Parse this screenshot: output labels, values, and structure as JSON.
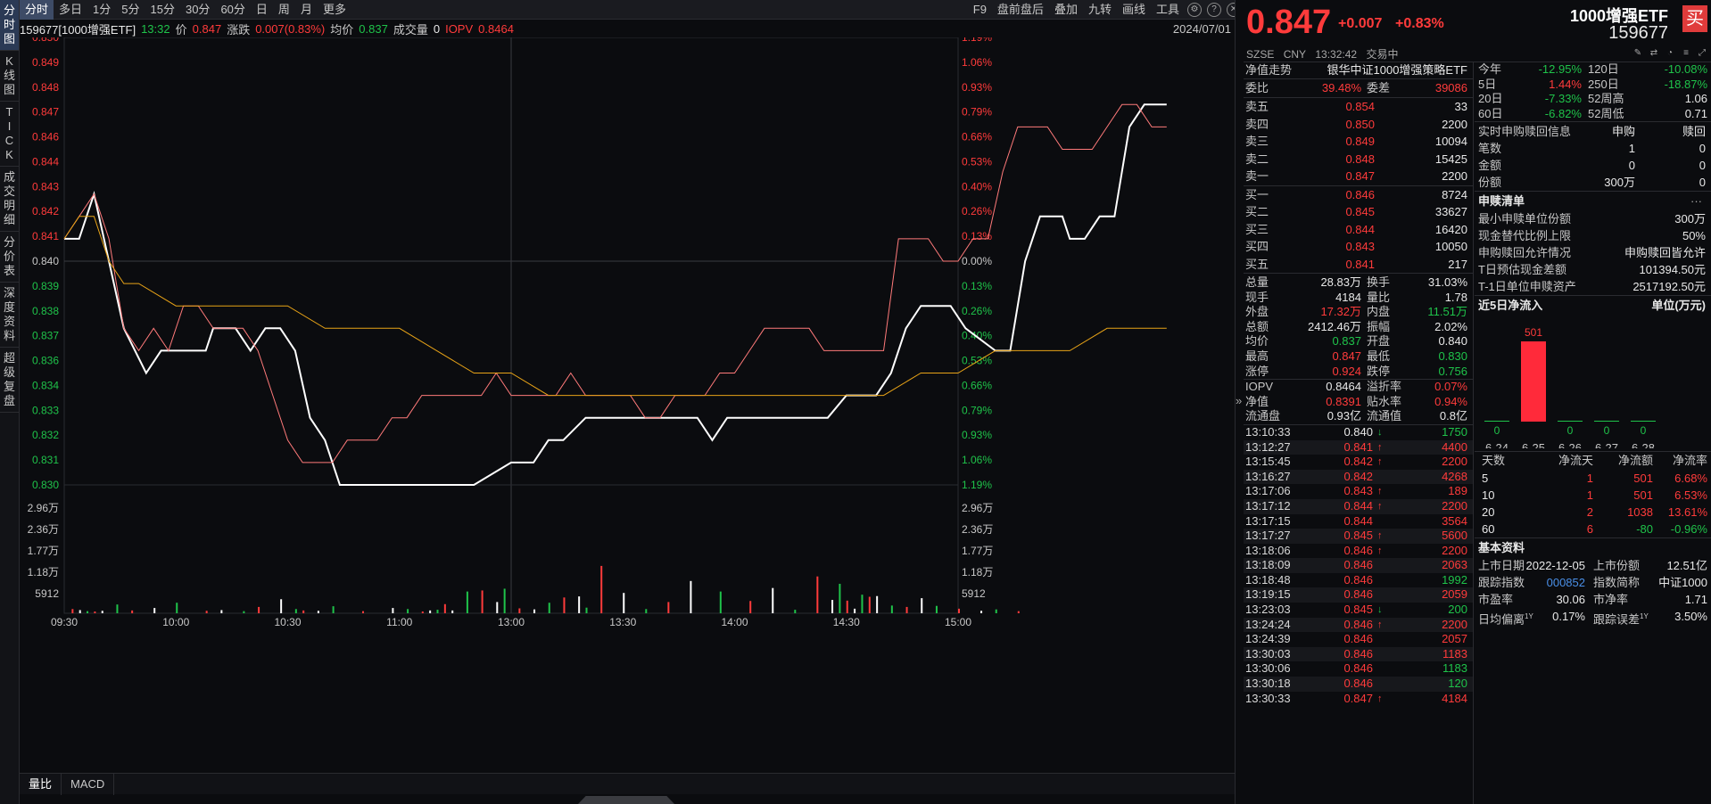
{
  "left_nav": [
    {
      "label": "分时图",
      "chars": [
        "分",
        "时",
        "图"
      ]
    },
    {
      "label": "K线图",
      "chars": [
        "K",
        "线",
        "图"
      ]
    },
    {
      "label": "TICK",
      "chars": [
        "T",
        "I",
        "C",
        "K"
      ]
    },
    {
      "label": "成交明细",
      "chars": [
        "成",
        "交",
        "明",
        "细"
      ]
    },
    {
      "label": "分价表",
      "chars": [
        "分",
        "价",
        "表"
      ]
    },
    {
      "label": "深度资料",
      "chars": [
        "深",
        "度",
        "资",
        "料"
      ]
    },
    {
      "label": "超级复盘",
      "chars": [
        "超",
        "级",
        "复",
        "盘"
      ]
    }
  ],
  "toolbar": {
    "periods": [
      "分时",
      "多日",
      "1分",
      "5分",
      "15分",
      "30分",
      "60分",
      "日",
      "周",
      "月",
      "更多"
    ],
    "tools": [
      "F9",
      "盘前盘后",
      "叠加",
      "九转",
      "画线",
      "工具"
    ]
  },
  "info_line": {
    "code_name": "159677[1000增强ETF]",
    "time": "13:32",
    "price_label": "价",
    "price": "0.847",
    "change_label": "涨跌",
    "change": "0.007(0.83%)",
    "avg_label": "均价",
    "avg": "0.837",
    "vol_label": "成交量",
    "vol": "0",
    "iopv_label": "IOPV",
    "iopv": "0.8464",
    "date": "2024/07/01"
  },
  "chart_data": {
    "type": "line",
    "prev_close": 0.84,
    "ylim": [
      0.83,
      0.85
    ],
    "y_ticks": [
      "0.850",
      "0.849",
      "0.848",
      "0.847",
      "0.846",
      "0.844",
      "0.843",
      "0.842",
      "0.841",
      "0.840",
      "0.839",
      "0.838",
      "0.837",
      "0.836",
      "0.834",
      "0.833",
      "0.832",
      "0.831",
      "0.830"
    ],
    "pct_ticks": [
      "1.19%",
      "1.06%",
      "0.93%",
      "0.79%",
      "0.66%",
      "0.53%",
      "0.40%",
      "0.26%",
      "0.13%",
      "0.00%",
      "0.13%",
      "0.26%",
      "0.40%",
      "0.53%",
      "0.66%",
      "0.79%",
      "0.93%",
      "1.06%",
      "1.19%"
    ],
    "x_ticks": [
      "09:30",
      "10:00",
      "10:30",
      "11:00",
      "13:00",
      "13:30",
      "14:00",
      "14:30",
      "15:00"
    ],
    "vol_ticks": [
      "2.96万",
      "2.36万",
      "1.77万",
      "1.18万",
      "5912"
    ],
    "series": [
      {
        "name": "价格",
        "color": "#ffffff",
        "x": [
          0,
          4,
          8,
          12,
          16,
          22,
          26,
          30,
          34,
          38,
          40,
          46,
          50,
          54,
          58,
          62,
          66,
          70,
          74,
          80,
          90,
          100,
          110,
          120,
          126,
          130,
          134,
          140,
          150,
          160,
          170,
          174,
          178,
          190,
          200,
          205,
          210,
          215,
          218,
          222,
          226,
          230,
          234,
          238,
          242,
          250,
          254,
          258,
          262,
          266,
          268,
          270,
          274,
          278,
          282,
          286,
          290,
          294,
          296
        ],
        "y": [
          0.841,
          0.841,
          0.843,
          0.84,
          0.837,
          0.835,
          0.836,
          0.836,
          0.836,
          0.836,
          0.837,
          0.837,
          0.836,
          0.837,
          0.837,
          0.836,
          0.833,
          0.832,
          0.83,
          0.83,
          0.83,
          0.83,
          0.83,
          0.831,
          0.831,
          0.832,
          0.832,
          0.833,
          0.833,
          0.833,
          0.833,
          0.832,
          0.833,
          0.833,
          0.833,
          0.833,
          0.834,
          0.834,
          0.834,
          0.835,
          0.837,
          0.838,
          0.838,
          0.838,
          0.837,
          0.836,
          0.836,
          0.84,
          0.842,
          0.842,
          0.842,
          0.841,
          0.841,
          0.842,
          0.842,
          0.846,
          0.847,
          0.847,
          0.847
        ]
      },
      {
        "name": "IOPV",
        "color": "#ff7a7a",
        "x": [
          0,
          4,
          8,
          12,
          16,
          20,
          24,
          28,
          32,
          36,
          40,
          44,
          48,
          52,
          56,
          60,
          64,
          68,
          72,
          76,
          80,
          84,
          88,
          92,
          96,
          100,
          104,
          108,
          112,
          116,
          120,
          124,
          128,
          132,
          136,
          140,
          144,
          148,
          152,
          156,
          160,
          164,
          168,
          172,
          176,
          180,
          184,
          188,
          192,
          196,
          200,
          204,
          208,
          212,
          216,
          220,
          224,
          228,
          232,
          236,
          240,
          244,
          248,
          252,
          256,
          260,
          264,
          268,
          272,
          276,
          280,
          284,
          288,
          292,
          296
        ],
        "y": [
          0.841,
          0.842,
          0.843,
          0.841,
          0.837,
          0.836,
          0.837,
          0.836,
          0.838,
          0.838,
          0.837,
          0.837,
          0.837,
          0.836,
          0.834,
          0.832,
          0.831,
          0.831,
          0.831,
          0.832,
          0.832,
          0.832,
          0.833,
          0.833,
          0.834,
          0.834,
          0.834,
          0.834,
          0.834,
          0.835,
          0.834,
          0.834,
          0.834,
          0.834,
          0.835,
          0.834,
          0.834,
          0.834,
          0.834,
          0.833,
          0.833,
          0.834,
          0.834,
          0.834,
          0.835,
          0.835,
          0.836,
          0.837,
          0.837,
          0.837,
          0.837,
          0.836,
          0.836,
          0.836,
          0.836,
          0.836,
          0.841,
          0.841,
          0.841,
          0.84,
          0.84,
          0.841,
          0.841,
          0.844,
          0.846,
          0.846,
          0.846,
          0.845,
          0.845,
          0.845,
          0.846,
          0.847,
          0.847,
          0.846,
          0.846
        ]
      },
      {
        "name": "均价",
        "color": "#e8a317",
        "x": [
          0,
          4,
          8,
          12,
          16,
          20,
          30,
          40,
          50,
          60,
          70,
          80,
          90,
          100,
          110,
          120,
          130,
          140,
          150,
          160,
          170,
          180,
          190,
          200,
          210,
          220,
          230,
          240,
          250,
          260,
          270,
          280,
          290,
          296
        ],
        "y": [
          0.841,
          0.842,
          0.842,
          0.84,
          0.839,
          0.839,
          0.838,
          0.838,
          0.838,
          0.838,
          0.837,
          0.837,
          0.837,
          0.836,
          0.835,
          0.835,
          0.834,
          0.834,
          0.834,
          0.834,
          0.834,
          0.834,
          0.834,
          0.834,
          0.834,
          0.834,
          0.835,
          0.835,
          0.836,
          0.836,
          0.836,
          0.837,
          0.837,
          0.837
        ]
      }
    ],
    "volume": {
      "x": [
        2,
        4,
        6,
        8,
        10,
        14,
        18,
        24,
        30,
        38,
        42,
        48,
        52,
        58,
        62,
        64,
        68,
        72,
        80,
        88,
        92,
        96,
        98,
        100,
        102,
        104,
        108,
        112,
        116,
        118,
        122,
        126,
        130,
        134,
        138,
        140,
        144,
        150,
        156,
        162,
        168,
        176,
        184,
        190,
        196,
        202,
        206,
        208,
        210,
        212,
        214,
        216,
        218,
        222,
        226,
        230,
        234,
        240,
        246,
        250,
        256
      ],
      "v": [
        1200,
        900,
        600,
        500,
        700,
        2500,
        800,
        1500,
        3000,
        700,
        900,
        600,
        1800,
        4000,
        1200,
        800,
        700,
        2000,
        600,
        1500,
        1200,
        500,
        800,
        1000,
        2600,
        800,
        6200,
        6500,
        3200,
        7000,
        1400,
        1100,
        3000,
        4500,
        4800,
        1600,
        13500,
        5800,
        1200,
        3200,
        9200,
        6200,
        3500,
        7200,
        1000,
        10500,
        3800,
        8400,
        3600,
        1300,
        5300,
        4700,
        4900,
        2200,
        1800,
        4300,
        2100,
        1300,
        700,
        1100,
        600
      ],
      "max": 30000
    }
  },
  "bottom_tabs": [
    "量比",
    "MACD"
  ],
  "quote": {
    "price": "0.847",
    "change": "+0.007",
    "change_pct": "+0.83%",
    "name": "1000增强ETF",
    "code": "159677",
    "buy_label": "买",
    "exchange": "SZSE",
    "currency": "CNY",
    "time": "13:32:42",
    "status": "交易中"
  },
  "nav_trend": {
    "label": "净值走势",
    "value": "银华中证1000增强策略ETF"
  },
  "weibi": {
    "label": "委比",
    "value": "39.48%",
    "label2": "委差",
    "value2": "39086"
  },
  "asks": [
    {
      "label": "卖五",
      "price": "0.854",
      "vol": "33"
    },
    {
      "label": "卖四",
      "price": "0.850",
      "vol": "2200"
    },
    {
      "label": "卖三",
      "price": "0.849",
      "vol": "10094"
    },
    {
      "label": "卖二",
      "price": "0.848",
      "vol": "15425"
    },
    {
      "label": "卖一",
      "price": "0.847",
      "vol": "2200"
    }
  ],
  "bids": [
    {
      "label": "买一",
      "price": "0.846",
      "vol": "8724"
    },
    {
      "label": "买二",
      "price": "0.845",
      "vol": "33627"
    },
    {
      "label": "买三",
      "price": "0.844",
      "vol": "16420"
    },
    {
      "label": "买四",
      "price": "0.843",
      "vol": "10050"
    },
    {
      "label": "买五",
      "price": "0.841",
      "vol": "217"
    }
  ],
  "stats": [
    {
      "k1": "总量",
      "v1": "28.83万",
      "c1": "white",
      "k2": "换手",
      "v2": "31.03%",
      "c2": "white"
    },
    {
      "k1": "现手",
      "v1": "4184",
      "c1": "white",
      "k2": "量比",
      "v2": "1.78",
      "c2": "white"
    },
    {
      "k1": "外盘",
      "v1": "17.32万",
      "c1": "red",
      "k2": "内盘",
      "v2": "11.51万",
      "c2": "green"
    },
    {
      "k1": "总额",
      "v1": "2412.46万",
      "c1": "white",
      "k2": "振幅",
      "v2": "2.02%",
      "c2": "white"
    },
    {
      "k1": "均价",
      "v1": "0.837",
      "c1": "green",
      "k2": "开盘",
      "v2": "0.840",
      "c2": "white"
    },
    {
      "k1": "最高",
      "v1": "0.847",
      "c1": "red",
      "k2": "最低",
      "v2": "0.830",
      "c2": "green"
    },
    {
      "k1": "涨停",
      "v1": "0.924",
      "c1": "red",
      "k2": "跌停",
      "v2": "0.756",
      "c2": "green"
    }
  ],
  "stats2": [
    {
      "k1": "IOPV",
      "v1": "0.8464",
      "c1": "white",
      "k2": "溢折率",
      "v2": "0.07%",
      "c2": "red"
    },
    {
      "k1": "净值",
      "v1": "0.8391",
      "c1": "red",
      "k2": "贴水率",
      "v2": "0.94%",
      "c2": "red"
    },
    {
      "k1": "流通盘",
      "v1": "0.93亿",
      "c1": "white",
      "k2": "流通值",
      "v2": "0.8亿",
      "c2": "white"
    }
  ],
  "ticks": [
    {
      "t": "13:10:33",
      "p": "0.840",
      "pc": "white",
      "a": "↓",
      "ac": "green",
      "v": "1750",
      "vc": "green"
    },
    {
      "t": "13:12:27",
      "p": "0.841",
      "pc": "red",
      "a": "↑",
      "ac": "red",
      "v": "4400",
      "vc": "red"
    },
    {
      "t": "13:15:45",
      "p": "0.842",
      "pc": "red",
      "a": "↑",
      "ac": "red",
      "v": "2200",
      "vc": "red"
    },
    {
      "t": "13:16:27",
      "p": "0.842",
      "pc": "red",
      "a": "",
      "ac": "red",
      "v": "4268",
      "vc": "red"
    },
    {
      "t": "13:17:06",
      "p": "0.843",
      "pc": "red",
      "a": "↑",
      "ac": "red",
      "v": "189",
      "vc": "red"
    },
    {
      "t": "13:17:12",
      "p": "0.844",
      "pc": "red",
      "a": "↑",
      "ac": "red",
      "v": "2200",
      "vc": "red"
    },
    {
      "t": "13:17:15",
      "p": "0.844",
      "pc": "red",
      "a": "",
      "ac": "red",
      "v": "3564",
      "vc": "red"
    },
    {
      "t": "13:17:27",
      "p": "0.845",
      "pc": "red",
      "a": "↑",
      "ac": "red",
      "v": "5600",
      "vc": "red"
    },
    {
      "t": "13:18:06",
      "p": "0.846",
      "pc": "red",
      "a": "↑",
      "ac": "red",
      "v": "2200",
      "vc": "red"
    },
    {
      "t": "13:18:09",
      "p": "0.846",
      "pc": "red",
      "a": "",
      "ac": "red",
      "v": "2063",
      "vc": "red"
    },
    {
      "t": "13:18:48",
      "p": "0.846",
      "pc": "red",
      "a": "",
      "ac": "red",
      "v": "1992",
      "vc": "green"
    },
    {
      "t": "13:19:15",
      "p": "0.846",
      "pc": "red",
      "a": "",
      "ac": "red",
      "v": "2059",
      "vc": "red"
    },
    {
      "t": "13:23:03",
      "p": "0.845",
      "pc": "red",
      "a": "↓",
      "ac": "green",
      "v": "200",
      "vc": "green"
    },
    {
      "t": "13:24:24",
      "p": "0.846",
      "pc": "red",
      "a": "↑",
      "ac": "red",
      "v": "2200",
      "vc": "red"
    },
    {
      "t": "13:24:39",
      "p": "0.846",
      "pc": "red",
      "a": "",
      "ac": "red",
      "v": "2057",
      "vc": "red"
    },
    {
      "t": "13:30:03",
      "p": "0.846",
      "pc": "red",
      "a": "",
      "ac": "red",
      "v": "1183",
      "vc": "red"
    },
    {
      "t": "13:30:06",
      "p": "0.846",
      "pc": "red",
      "a": "",
      "ac": "red",
      "v": "1183",
      "vc": "green"
    },
    {
      "t": "13:30:18",
      "p": "0.846",
      "pc": "red",
      "a": "",
      "ac": "red",
      "v": "120",
      "vc": "green"
    },
    {
      "t": "13:30:33",
      "p": "0.847",
      "pc": "red",
      "a": "↑",
      "ac": "red",
      "v": "4184",
      "vc": "red"
    }
  ],
  "performance": [
    {
      "l1": "今年",
      "v1": "-12.95%",
      "c1": "green",
      "l2": "120日",
      "v2": "-10.08%",
      "c2": "green"
    },
    {
      "l1": "5日",
      "v1": "1.44%",
      "c1": "red",
      "l2": "250日",
      "v2": "-18.87%",
      "c2": "green"
    },
    {
      "l1": "20日",
      "v1": "-7.33%",
      "c1": "green",
      "l2": "52周高",
      "v2": "1.06",
      "c2": "white"
    },
    {
      "l1": "60日",
      "v1": "-6.82%",
      "c1": "green",
      "l2": "52周低",
      "v2": "0.71",
      "c2": "white"
    }
  ],
  "subscription": {
    "title": "实时申购赎回信息",
    "col1": "申购",
    "col2": "赎回",
    "rows": [
      {
        "k": "笔数",
        "a": "1",
        "b": "0"
      },
      {
        "k": "金额",
        "a": "0",
        "b": "0"
      },
      {
        "k": "份额",
        "a": "300万",
        "b": "0"
      }
    ]
  },
  "creation_list": {
    "title": "申赎清单",
    "more": "···",
    "rows": [
      {
        "k": "最小申赎单位份额",
        "v": "300万"
      },
      {
        "k": "现金替代比例上限",
        "v": "50%"
      },
      {
        "k": "申购赎回允许情况",
        "v": "申购赎回皆允许"
      },
      {
        "k": "T日预估现金差额",
        "v": "101394.50元"
      },
      {
        "k": "T-1日单位申赎资产",
        "v": "2517192.50元"
      }
    ]
  },
  "net_inflow": {
    "title": "近5日净流入",
    "unit": "单位(万元)",
    "dates": [
      "6-24",
      "6-25",
      "6-26",
      "6-27",
      "6-28"
    ],
    "values": [
      0,
      501,
      0,
      0,
      0
    ],
    "labels": [
      "0",
      "501",
      "0",
      "0",
      "0"
    ],
    "table_head": {
      "d": "天数",
      "n": "净流天",
      "m": "净流额",
      "r": "净流率"
    },
    "table": [
      {
        "d": "5",
        "n": "1",
        "m": "501",
        "r": "6.68%",
        "c": "red"
      },
      {
        "d": "10",
        "n": "1",
        "m": "501",
        "r": "6.53%",
        "c": "red"
      },
      {
        "d": "20",
        "n": "2",
        "m": "1038",
        "r": "13.61%",
        "c": "red"
      },
      {
        "d": "60",
        "n": "6",
        "m": "-80",
        "r": "-0.96%",
        "c": "mixed"
      }
    ]
  },
  "basic": {
    "title": "基本资料",
    "rows": [
      {
        "k1": "上市日期",
        "v1": "2022-12-05",
        "k2": "上市份额",
        "v2": "12.51亿"
      },
      {
        "k1": "跟踪指数",
        "v1": "000852",
        "k2": "指数简称",
        "v2": "中证1000"
      },
      {
        "k1": "市盈率",
        "v1": "30.06",
        "k2": "市净率",
        "v2": "1.71"
      },
      {
        "k1": "日均偏离",
        "v1": "0.17%",
        "k2": "跟踪误差",
        "v2": "3.50%"
      }
    ],
    "sup": "1Y"
  }
}
